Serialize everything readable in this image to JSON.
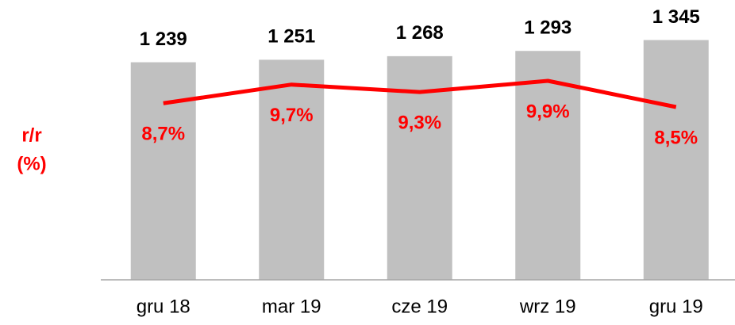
{
  "chart_data": {
    "type": "bar",
    "y2label": [
      "r/r",
      "(%)"
    ],
    "categories": [
      "gru 18",
      "mar 19",
      "cze 19",
      "wrz 19",
      "gru 19"
    ],
    "series": [
      {
        "type": "bar",
        "color": "#c0c0c0",
        "values": [
          1239,
          1251,
          1268,
          1293,
          1345
        ],
        "value_labels": [
          "1 239",
          "1 251",
          "1 268",
          "1 293",
          "1 345"
        ]
      },
      {
        "type": "line",
        "axis": "y2",
        "color": "#ff0000",
        "values": [
          8.7,
          9.7,
          9.3,
          9.9,
          8.5
        ],
        "value_labels": [
          "8,7%",
          "9,7%",
          "9,3%",
          "9,9%",
          "8,5%"
        ]
      }
    ],
    "ylim": [
      200,
      1400
    ],
    "y2lim": [
      -0.75,
      12.7
    ]
  }
}
